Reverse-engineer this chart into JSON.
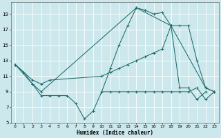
{
  "xlabel": "Humidex (Indice chaleur)",
  "xlim": [
    -0.5,
    23.5
  ],
  "ylim": [
    5,
    20.5
  ],
  "yticks": [
    5,
    7,
    9,
    11,
    13,
    15,
    17,
    19
  ],
  "xticks": [
    0,
    1,
    2,
    3,
    4,
    5,
    6,
    7,
    8,
    9,
    10,
    11,
    12,
    13,
    14,
    15,
    16,
    17,
    18,
    19,
    20,
    21,
    22,
    23
  ],
  "background_color": "#cce8ec",
  "grid_color": "#ffffff",
  "line_color": "#1a6b6b",
  "lines": [
    {
      "x": [
        0,
        1,
        2,
        3,
        4,
        5,
        6,
        7,
        8,
        9,
        10,
        11,
        12,
        13,
        14,
        15,
        16,
        17,
        18,
        19,
        20,
        21,
        22
      ],
      "y": [
        12.5,
        11.5,
        10.0,
        8.5,
        8.5,
        8.5,
        8.5,
        7.5,
        5.5,
        6.5,
        9.0,
        12.0,
        15.0,
        17.5,
        19.8,
        19.5,
        19.0,
        19.2,
        17.5,
        9.5,
        9.5,
        8.0,
        9.0
      ]
    },
    {
      "x": [
        10,
        11,
        12,
        13,
        14,
        15,
        16,
        17,
        18,
        19,
        20,
        21,
        22,
        23
      ],
      "y": [
        9.0,
        9.0,
        9.0,
        9.0,
        9.0,
        9.0,
        9.0,
        9.0,
        9.0,
        9.0,
        9.0,
        9.5,
        8.0,
        9.0
      ]
    },
    {
      "x": [
        0,
        2,
        3,
        4,
        10,
        11,
        12,
        13,
        14,
        15,
        16,
        17,
        18,
        19,
        20,
        21,
        22,
        23
      ],
      "y": [
        12.5,
        10.5,
        10.0,
        10.5,
        11.0,
        11.5,
        12.0,
        12.5,
        13.0,
        13.5,
        14.0,
        14.5,
        17.5,
        17.5,
        17.5,
        13.0,
        9.5,
        9.0
      ]
    },
    {
      "x": [
        0,
        2,
        3,
        14,
        18,
        22,
        23
      ],
      "y": [
        12.5,
        10.0,
        9.0,
        19.8,
        17.5,
        9.5,
        9.0
      ]
    }
  ]
}
